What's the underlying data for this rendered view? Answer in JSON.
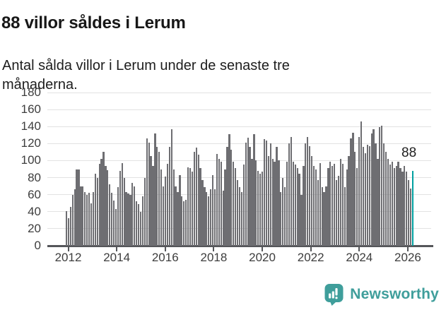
{
  "header": {
    "title": "88 villor såldes i Lerum",
    "subtitle": "Antal sålda villor i Lerum under de senaste tre månaderna."
  },
  "chart_data": {
    "type": "bar",
    "title": "88 villor såldes i Lerum",
    "subtitle": "Antal sålda villor i Lerum under de senaste tre månaderna.",
    "x_unit": "month",
    "x_start": "2012-01",
    "x_end": "2026-01",
    "values": [
      41,
      32,
      46,
      60,
      66,
      90,
      90,
      70,
      70,
      63,
      60,
      62,
      50,
      63,
      85,
      80,
      96,
      102,
      110,
      94,
      89,
      72,
      62,
      53,
      43,
      69,
      88,
      97,
      80,
      63,
      61,
      60,
      74,
      70,
      52,
      49,
      40,
      58,
      80,
      126,
      121,
      105,
      94,
      132,
      116,
      110,
      90,
      70,
      81,
      96,
      116,
      137,
      90,
      70,
      63,
      83,
      58,
      52,
      54,
      92,
      91,
      87,
      110,
      115,
      107,
      91,
      77,
      69,
      63,
      58,
      66,
      83,
      66,
      108,
      102,
      99,
      65,
      90,
      116,
      131,
      113,
      99,
      91,
      77,
      69,
      63,
      95,
      121,
      127,
      116,
      102,
      131,
      100,
      88,
      85,
      87,
      125,
      124,
      105,
      120,
      102,
      99,
      116,
      100,
      63,
      80,
      69,
      99,
      120,
      128,
      99,
      95,
      91,
      85,
      60,
      94,
      120,
      128,
      117,
      105,
      94,
      90,
      77,
      97,
      69,
      63,
      70,
      91,
      99,
      94,
      96,
      77,
      82,
      102,
      96,
      69,
      90,
      105,
      126,
      133,
      110,
      91,
      128,
      146,
      116,
      109,
      119,
      117,
      132,
      137,
      120,
      102,
      139,
      141,
      120,
      110,
      102,
      95,
      99,
      91,
      94,
      99,
      91,
      87,
      94,
      87,
      77,
      67,
      88
    ],
    "highlight_index": 168,
    "highlight_label": "88",
    "ylim": [
      0,
      180
    ],
    "yticks": [
      0,
      20,
      40,
      60,
      80,
      100,
      120,
      140,
      160,
      180
    ],
    "xticks": [
      "2012",
      "2014",
      "2016",
      "2018",
      "2020",
      "2022",
      "2024",
      "2026"
    ],
    "grid": true,
    "legend": "none",
    "bar_color": "#6e6e72",
    "highlight_color": "#00a0a0"
  },
  "footer": {
    "brand": "Newsworthy",
    "brand_color": "#3f9e9b",
    "logo_icon": "speech-bubble-bar-chart-exclamation"
  },
  "colors": {
    "background": "#ffffff",
    "title_text": "#171717",
    "axis_text": "#3d3d3d",
    "axis_line": "#55565a",
    "gridline": "#e2e2e2"
  }
}
